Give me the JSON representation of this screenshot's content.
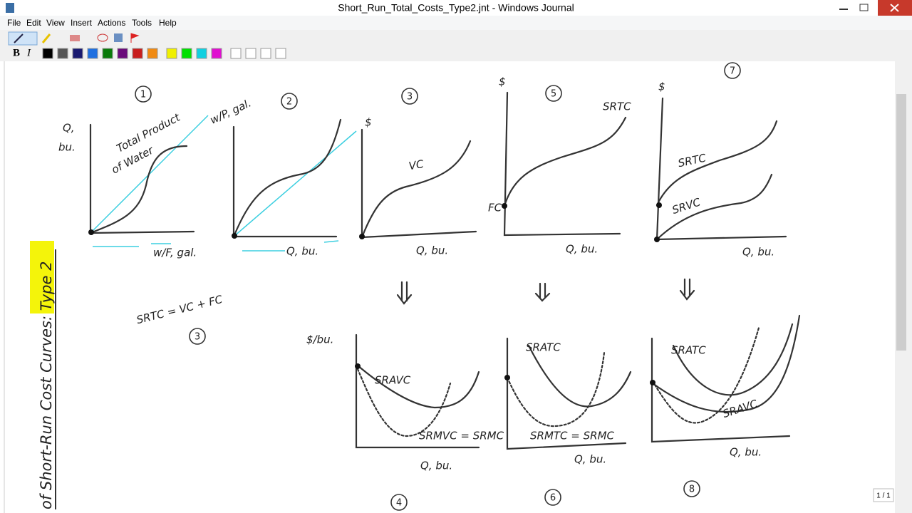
{
  "window": {
    "title": "Short_Run_Total_Costs_Type2.jnt - Windows Journal"
  },
  "menu": [
    "File",
    "Edit",
    "View",
    "Insert",
    "Actions",
    "Tools",
    "Help"
  ],
  "format_toolbar": {
    "bold": "B",
    "italic": "I"
  },
  "page_indicator": "1 / 1",
  "note": {
    "side_title": "of Short-Run Cost Curves: Type 2",
    "equation": "SRTC = VC + FC",
    "equation_ref": "3",
    "graphs": [
      {
        "number": "1",
        "labels": [
          "Q,",
          "bu.",
          "Total Product",
          "of Water",
          "w/F, gal."
        ]
      },
      {
        "number": "2",
        "labels": [
          "w/P, gal.",
          "Q, bu."
        ]
      },
      {
        "number": "3",
        "labels": [
          "$",
          "VC",
          "Q, bu."
        ]
      },
      {
        "number": "5",
        "labels": [
          "$",
          "SRTC",
          "FC",
          "Q, bu."
        ]
      },
      {
        "number": "7",
        "labels": [
          "$",
          "SRTC",
          "SRVC",
          "Q, bu."
        ]
      },
      {
        "number": "4",
        "labels": [
          "$/bu.",
          "SRAVC",
          "SRMVC = SRMC",
          "Q, bu."
        ]
      },
      {
        "number": "6",
        "labels": [
          "SRATC",
          "SRMTC = SRMC",
          "Q, bu."
        ]
      },
      {
        "number": "8",
        "labels": [
          "SRATC",
          "SRAVC",
          "Q, bu."
        ]
      }
    ]
  }
}
